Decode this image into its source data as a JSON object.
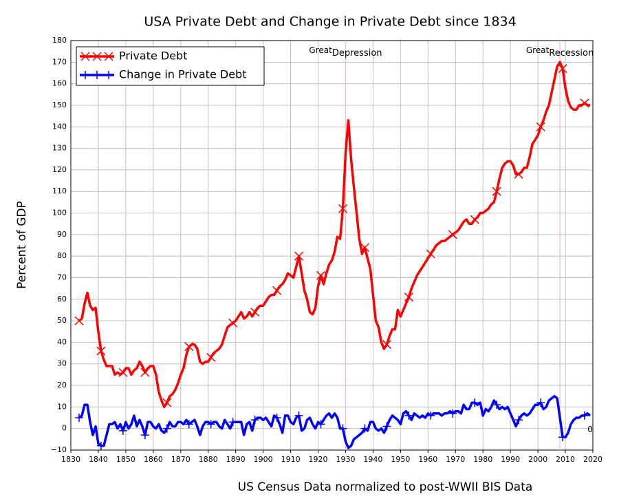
{
  "chart_data": {
    "type": "line",
    "title": "USA Private Debt and Change in Private Debt since 1834",
    "x_label": "US Census Data normalized to post-WWII BIS Data",
    "y_label": "Percent of GDP",
    "x": [
      1833,
      1834,
      1835,
      1836,
      1837,
      1838,
      1839,
      1840,
      1841,
      1842,
      1843,
      1844,
      1845,
      1846,
      1847,
      1848,
      1849,
      1850,
      1851,
      1852,
      1853,
      1854,
      1855,
      1856,
      1857,
      1858,
      1859,
      1860,
      1861,
      1862,
      1863,
      1864,
      1865,
      1866,
      1867,
      1868,
      1869,
      1870,
      1871,
      1872,
      1873,
      1874,
      1875,
      1876,
      1877,
      1878,
      1879,
      1880,
      1881,
      1882,
      1883,
      1884,
      1885,
      1886,
      1887,
      1888,
      1889,
      1890,
      1891,
      1892,
      1893,
      1894,
      1895,
      1896,
      1897,
      1898,
      1899,
      1900,
      1901,
      1902,
      1903,
      1904,
      1905,
      1906,
      1907,
      1908,
      1909,
      1910,
      1911,
      1912,
      1913,
      1914,
      1915,
      1916,
      1917,
      1918,
      1919,
      1920,
      1921,
      1922,
      1923,
      1924,
      1925,
      1926,
      1927,
      1928,
      1929,
      1930,
      1931,
      1932,
      1933,
      1934,
      1935,
      1936,
      1937,
      1938,
      1939,
      1940,
      1941,
      1942,
      1943,
      1944,
      1945,
      1946,
      1947,
      1948,
      1949,
      1950,
      1951,
      1952,
      1953,
      1954,
      1955,
      1956,
      1957,
      1958,
      1959,
      1960,
      1961,
      1962,
      1963,
      1964,
      1965,
      1966,
      1967,
      1968,
      1969,
      1970,
      1971,
      1972,
      1973,
      1974,
      1975,
      1976,
      1977,
      1978,
      1979,
      1980,
      1981,
      1982,
      1983,
      1984,
      1985,
      1986,
      1987,
      1988,
      1989,
      1990,
      1991,
      1992,
      1993,
      1994,
      1995,
      1996,
      1997,
      1998,
      1999,
      2000,
      2001,
      2002,
      2003,
      2004,
      2005,
      2006,
      2007,
      2008,
      2009,
      2010,
      2011,
      2012,
      2013,
      2014,
      2015,
      2016,
      2017,
      2018,
      2019
    ],
    "series": [
      {
        "name": "Private Debt",
        "color": "#ff0000",
        "marker": "x",
        "values": [
          50,
          51,
          58,
          63,
          57,
          55,
          56,
          45,
          36,
          32,
          29,
          29,
          29,
          25,
          26,
          25,
          26,
          28,
          28,
          25,
          27,
          28,
          31,
          29,
          26,
          28,
          29,
          29,
          25,
          17,
          13,
          10,
          12,
          15,
          16,
          18,
          21,
          25,
          28,
          34,
          38,
          39,
          39,
          37,
          31,
          30,
          31,
          31,
          33,
          35,
          36,
          37,
          39,
          43,
          47,
          48,
          49,
          50,
          52,
          54,
          51,
          52,
          54,
          52,
          54,
          56,
          57,
          57,
          59,
          61,
          62,
          62,
          64,
          66,
          67,
          69,
          72,
          71,
          70,
          75,
          80,
          72,
          64,
          60,
          54,
          53,
          56,
          66,
          71,
          67,
          72,
          76,
          78,
          82,
          89,
          88,
          102,
          128,
          143,
          125,
          112,
          100,
          88,
          81,
          84,
          79,
          74,
          62,
          50,
          47,
          40,
          37,
          39,
          43,
          46,
          46,
          55,
          52,
          55,
          58,
          61,
          65,
          68,
          71,
          73,
          75,
          77,
          79,
          81,
          83,
          85,
          86,
          87,
          87,
          88,
          89,
          90,
          91,
          92,
          94,
          96,
          97,
          95,
          95,
          97,
          98,
          100,
          100,
          101,
          102,
          104,
          105,
          110,
          116,
          121,
          123,
          124,
          124,
          122,
          118,
          118,
          119,
          121,
          121,
          126,
          132,
          134,
          136,
          140,
          143,
          147,
          150,
          156,
          162,
          168,
          170,
          167,
          158,
          152,
          149,
          148,
          148,
          150,
          150,
          151,
          150,
          150
        ]
      },
      {
        "name": "Change in Private Debt",
        "color": "#0000ff",
        "marker": "+",
        "values": [
          5,
          6,
          11,
          11,
          3,
          -3,
          1,
          -7,
          -8,
          -8,
          -3,
          2,
          2,
          3,
          0,
          2,
          -1,
          3,
          0,
          2,
          6,
          1,
          4,
          1,
          -3,
          3,
          3,
          1,
          0,
          2,
          -1,
          -2,
          0,
          3,
          1,
          1,
          3,
          3,
          2,
          4,
          2,
          3,
          4,
          1,
          -3,
          1,
          3,
          3,
          2,
          3,
          3,
          1,
          0,
          4,
          2,
          0,
          3,
          3,
          3,
          3,
          -3,
          2,
          3,
          -1,
          4,
          5,
          5,
          4,
          5,
          3,
          1,
          6,
          5,
          2,
          -2,
          6,
          6,
          3,
          2,
          5,
          6,
          -1,
          0,
          4,
          5,
          2,
          0,
          3,
          2,
          4,
          6,
          7,
          5,
          7,
          5,
          0,
          0,
          -6,
          -9,
          -8,
          -5,
          -4,
          -3,
          -2,
          0,
          -1,
          3,
          3,
          0,
          -1,
          0,
          -2,
          1,
          4,
          6,
          5,
          4,
          2,
          7,
          8,
          6,
          4,
          7,
          6,
          5,
          6,
          5,
          7,
          6,
          7,
          7,
          7,
          6,
          7,
          7,
          8,
          7,
          8,
          8,
          7,
          11,
          9,
          9,
          12,
          12,
          11,
          12,
          6,
          9,
          8,
          10,
          13,
          11,
          9,
          10,
          9,
          10,
          7,
          4,
          1,
          4,
          6,
          7,
          6,
          7,
          9,
          11,
          11,
          12,
          9,
          10,
          13,
          14,
          15,
          14,
          5,
          -4,
          -4,
          -2,
          2,
          4,
          5,
          5,
          6,
          6,
          7,
          6
        ]
      }
    ],
    "xlim": [
      1830,
      2020
    ],
    "xticks": [
      1830,
      1840,
      1850,
      1860,
      1870,
      1880,
      1890,
      1900,
      1910,
      1920,
      1930,
      1940,
      1950,
      1960,
      1970,
      1980,
      1990,
      2000,
      2010,
      2020
    ],
    "ylim": [
      -10,
      180
    ],
    "yticks": [
      {
        "value": -10,
        "label": "−10"
      },
      0,
      10,
      20,
      30,
      40,
      50,
      60,
      70,
      80,
      90,
      100,
      110,
      120,
      130,
      140,
      150,
      160,
      170,
      180
    ],
    "grid": true,
    "legend": "top-left",
    "annotations": [
      {
        "label": "Great",
        "sub": "Depression",
        "x": 1930
      },
      {
        "label": "Great",
        "sub": "Recession",
        "x": 2008
      }
    ],
    "end_label": {
      "text": "0",
      "x": 2018,
      "y": 0
    }
  }
}
